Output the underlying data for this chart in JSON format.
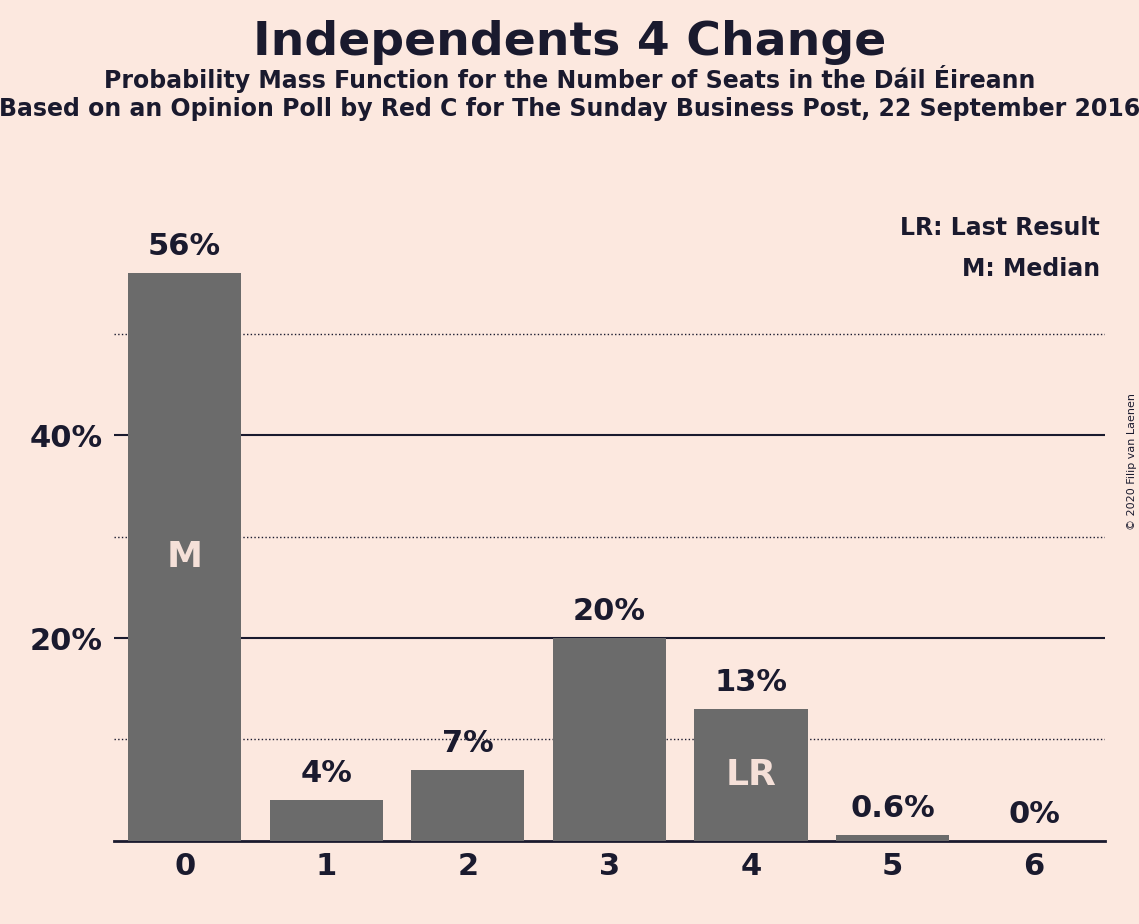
{
  "title": "Independents 4 Change",
  "subtitle1": "Probability Mass Function for the Number of Seats in the Dáil Éireann",
  "subtitle2": "Based on an Opinion Poll by Red C for The Sunday Business Post, 22 September 2016",
  "copyright": "© 2020 Filip van Laenen",
  "categories": [
    0,
    1,
    2,
    3,
    4,
    5,
    6
  ],
  "values": [
    56,
    4,
    7,
    20,
    13,
    0.6,
    0
  ],
  "bar_color": "#6b6b6b",
  "background_color": "#fce8df",
  "label_color_dark": "#1a1a2e",
  "label_color_light": "#f5e0d8",
  "bar_labels": [
    "56%",
    "4%",
    "7%",
    "20%",
    "13%",
    "0.6%",
    "0%"
  ],
  "bar_annotations": [
    {
      "bar": 0,
      "text": "M",
      "color": "#f5e0d8"
    },
    {
      "bar": 4,
      "text": "LR",
      "color": "#f5e0d8"
    }
  ],
  "legend_lines": [
    "LR: Last Result",
    "M: Median"
  ],
  "yticks_labeled": [
    20,
    40
  ],
  "yticks_solid": [
    20,
    40
  ],
  "yticks_dotted": [
    10,
    30,
    50
  ],
  "ylim": [
    0,
    62
  ],
  "title_fontsize": 34,
  "subtitle1_fontsize": 17,
  "subtitle2_fontsize": 17,
  "bar_label_fontsize": 22,
  "bar_annotation_fontsize": 26,
  "xtick_fontsize": 22,
  "ytick_fontsize": 22,
  "legend_fontsize": 17,
  "copyright_fontsize": 8
}
